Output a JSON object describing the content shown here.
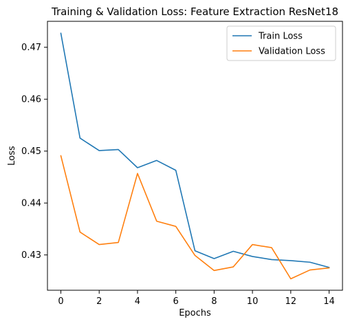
{
  "chart_data": {
    "type": "line",
    "title": "Training & Validation Loss: Feature Extraction ResNet18",
    "xlabel": "Epochs",
    "ylabel": "Loss",
    "x": [
      0,
      1,
      2,
      3,
      4,
      5,
      6,
      7,
      8,
      9,
      10,
      11,
      12,
      13,
      14
    ],
    "xlim": [
      -0.7,
      14.7
    ],
    "ylim": [
      0.4232,
      0.475
    ],
    "xticks": [
      0,
      2,
      4,
      6,
      8,
      10,
      12,
      14
    ],
    "yticks": [
      0.43,
      0.44,
      0.45,
      0.46,
      0.47
    ],
    "xtick_labels": [
      "0",
      "2",
      "4",
      "6",
      "8",
      "10",
      "12",
      "14"
    ],
    "ytick_labels": [
      "0.43",
      "0.44",
      "0.45",
      "0.46",
      "0.47"
    ],
    "grid": false,
    "legend_position": "top-right",
    "series": [
      {
        "name": "Train Loss",
        "color": "#1f77b4",
        "values": [
          0.4727,
          0.4525,
          0.4501,
          0.4503,
          0.4468,
          0.4482,
          0.4463,
          0.4308,
          0.4293,
          0.4307,
          0.4297,
          0.4291,
          0.4289,
          0.4286,
          0.4276
        ]
      },
      {
        "name": "Validation Loss",
        "color": "#ff7f0e",
        "values": [
          0.4491,
          0.4344,
          0.432,
          0.4324,
          0.4457,
          0.4365,
          0.4355,
          0.4299,
          0.427,
          0.4277,
          0.432,
          0.4314,
          0.4254,
          0.4271,
          0.4275
        ]
      }
    ]
  }
}
